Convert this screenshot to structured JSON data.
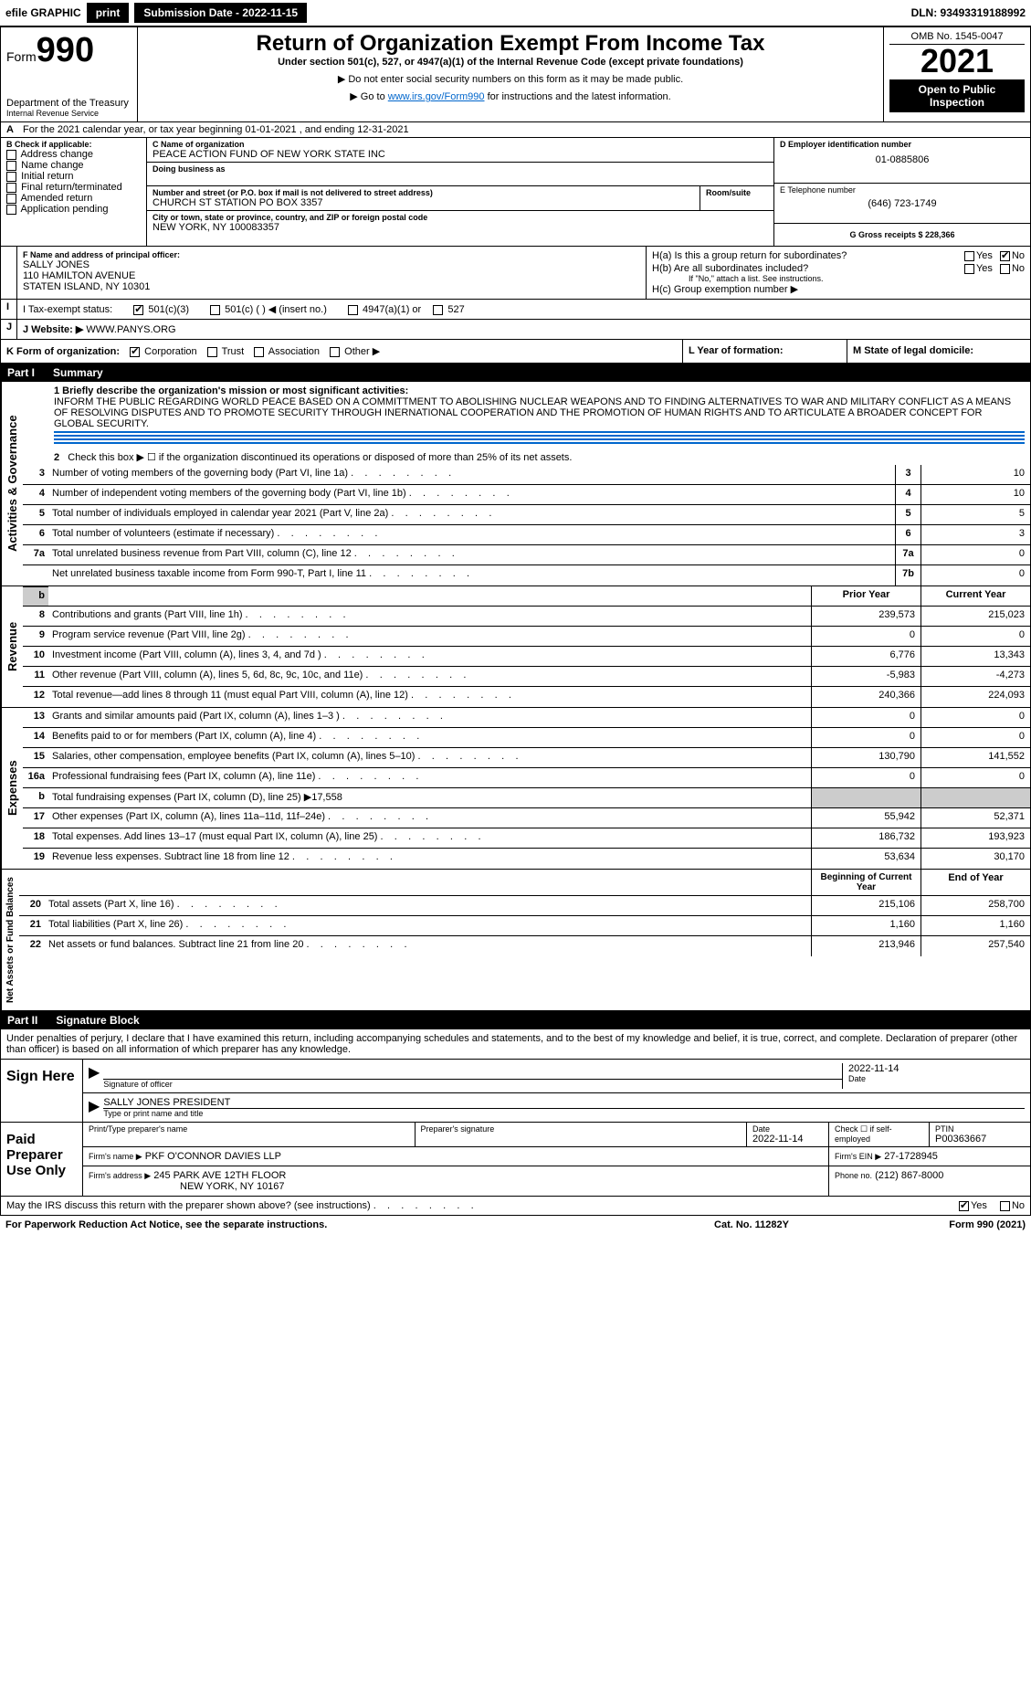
{
  "topbar": {
    "efile": "efile GRAPHIC",
    "print": "print",
    "submission_label": "Submission Date - 2022-11-15",
    "dln": "DLN: 93493319188992"
  },
  "header": {
    "form_prefix": "Form",
    "form_number": "990",
    "dept": "Department of the Treasury",
    "irs": "Internal Revenue Service",
    "title": "Return of Organization Exempt From Income Tax",
    "subtitle": "Under section 501(c), 527, or 4947(a)(1) of the Internal Revenue Code (except private foundations)",
    "note1": "▶ Do not enter social security numbers on this form as it may be made public.",
    "note2_pre": "▶ Go to ",
    "note2_link": "www.irs.gov/Form990",
    "note2_post": " for instructions and the latest information.",
    "omb": "OMB No. 1545-0047",
    "year": "2021",
    "open": "Open to Public Inspection"
  },
  "period": {
    "text_a": "For the 2021 calendar year, or tax year beginning 01-01-2021    , and ending 12-31-2021",
    "label_a": "A"
  },
  "section_b": {
    "label": "B Check if applicable:",
    "options": [
      "Address change",
      "Name change",
      "Initial return",
      "Final return/terminated",
      "Amended return",
      "Application pending"
    ]
  },
  "section_c": {
    "name_label": "C Name of organization",
    "name": "PEACE ACTION FUND OF NEW YORK STATE INC",
    "dba_label": "Doing business as",
    "dba": "",
    "addr_label": "Number and street (or P.O. box if mail is not delivered to street address)",
    "room_label": "Room/suite",
    "addr": "CHURCH ST STATION PO BOX 3357",
    "city_label": "City or town, state or province, country, and ZIP or foreign postal code",
    "city": "NEW YORK, NY  100083357"
  },
  "section_d": {
    "label": "D Employer identification number",
    "ein": "01-0885806"
  },
  "section_e": {
    "label": "E Telephone number",
    "phone": "(646) 723-1749"
  },
  "section_g": {
    "label": "G Gross receipts $ 228,366"
  },
  "section_f": {
    "label": "F  Name and address of principal officer:",
    "name": "SALLY JONES",
    "addr1": "110 HAMILTON AVENUE",
    "addr2": "STATEN ISLAND, NY  10301"
  },
  "section_h": {
    "ha": "H(a)  Is this a group return for subordinates?",
    "hb": "H(b)  Are all subordinates included?",
    "hb_note": "If \"No,\" attach a list. See instructions.",
    "hc": "H(c)  Group exemption number ▶",
    "yes": "Yes",
    "no": "No"
  },
  "section_i": {
    "label": "I  Tax-exempt status:",
    "opts": [
      "501(c)(3)",
      "501(c) (  ) ◀ (insert no.)",
      "4947(a)(1) or",
      "527"
    ]
  },
  "section_j": {
    "label": "J  Website: ▶",
    "value": " WWW.PANYS.ORG"
  },
  "section_k": {
    "label": "K Form of organization:",
    "opts": [
      "Corporation",
      "Trust",
      "Association",
      "Other ▶"
    ]
  },
  "section_l": {
    "label": "L Year of formation:",
    "value": ""
  },
  "section_m": {
    "label": "M State of legal domicile:",
    "value": ""
  },
  "part1": {
    "title": "Part I",
    "name": "Summary",
    "vlabels": {
      "gov": "Activities & Governance",
      "rev": "Revenue",
      "exp": "Expenses",
      "net": "Net Assets or Fund Balances"
    },
    "l1_label": "1  Briefly describe the organization's mission or most significant activities:",
    "l1_text": "INFORM THE PUBLIC REGARDING WORLD PEACE BASED ON A COMMITTMENT TO ABOLISHING NUCLEAR WEAPONS AND TO FINDING ALTERNATIVES TO WAR AND MILITARY CONFLICT AS A MEANS OF RESOLVING DISPUTES AND TO PROMOTE SECURITY THROUGH INERNATIONAL COOPERATION AND THE PROMOTION OF HUMAN RIGHTS AND TO ARTICULATE A BROADER CONCEPT FOR GLOBAL SECURITY.",
    "l2": "Check this box ▶ ☐ if the organization discontinued its operations or disposed of more than 25% of its net assets.",
    "lines_gov": [
      {
        "n": "3",
        "t": "Number of voting members of the governing body (Part VI, line 1a)",
        "box": "3",
        "v": "10"
      },
      {
        "n": "4",
        "t": "Number of independent voting members of the governing body (Part VI, line 1b)",
        "box": "4",
        "v": "10"
      },
      {
        "n": "5",
        "t": "Total number of individuals employed in calendar year 2021 (Part V, line 2a)",
        "box": "5",
        "v": "5"
      },
      {
        "n": "6",
        "t": "Total number of volunteers (estimate if necessary)",
        "box": "6",
        "v": "3"
      },
      {
        "n": "7a",
        "t": "Total unrelated business revenue from Part VIII, column (C), line 12",
        "box": "7a",
        "v": "0"
      },
      {
        "n": "",
        "t": "Net unrelated business taxable income from Form 990-T, Part I, line 11",
        "box": "7b",
        "v": "0"
      }
    ],
    "col_prior": "Prior Year",
    "col_current": "Current Year",
    "lines_rev": [
      {
        "n": "8",
        "t": "Contributions and grants (Part VIII, line 1h)",
        "p": "239,573",
        "c": "215,023"
      },
      {
        "n": "9",
        "t": "Program service revenue (Part VIII, line 2g)",
        "p": "0",
        "c": "0"
      },
      {
        "n": "10",
        "t": "Investment income (Part VIII, column (A), lines 3, 4, and 7d )",
        "p": "6,776",
        "c": "13,343"
      },
      {
        "n": "11",
        "t": "Other revenue (Part VIII, column (A), lines 5, 6d, 8c, 9c, 10c, and 11e)",
        "p": "-5,983",
        "c": "-4,273"
      },
      {
        "n": "12",
        "t": "Total revenue—add lines 8 through 11 (must equal Part VIII, column (A), line 12)",
        "p": "240,366",
        "c": "224,093"
      }
    ],
    "lines_exp": [
      {
        "n": "13",
        "t": "Grants and similar amounts paid (Part IX, column (A), lines 1–3 )",
        "p": "0",
        "c": "0"
      },
      {
        "n": "14",
        "t": "Benefits paid to or for members (Part IX, column (A), line 4)",
        "p": "0",
        "c": "0"
      },
      {
        "n": "15",
        "t": "Salaries, other compensation, employee benefits (Part IX, column (A), lines 5–10)",
        "p": "130,790",
        "c": "141,552"
      },
      {
        "n": "16a",
        "t": "Professional fundraising fees (Part IX, column (A), line 11e)",
        "p": "0",
        "c": "0"
      },
      {
        "n": "b",
        "t": "Total fundraising expenses (Part IX, column (D), line 25) ▶17,558",
        "p": "",
        "c": "",
        "grey": true
      },
      {
        "n": "17",
        "t": "Other expenses (Part IX, column (A), lines 11a–11d, 11f–24e)",
        "p": "55,942",
        "c": "52,371"
      },
      {
        "n": "18",
        "t": "Total expenses. Add lines 13–17 (must equal Part IX, column (A), line 25)",
        "p": "186,732",
        "c": "193,923"
      },
      {
        "n": "19",
        "t": "Revenue less expenses. Subtract line 18 from line 12",
        "p": "53,634",
        "c": "30,170"
      }
    ],
    "col_begin": "Beginning of Current Year",
    "col_end": "End of Year",
    "lines_net": [
      {
        "n": "20",
        "t": "Total assets (Part X, line 16)",
        "p": "215,106",
        "c": "258,700"
      },
      {
        "n": "21",
        "t": "Total liabilities (Part X, line 26)",
        "p": "1,160",
        "c": "1,160"
      },
      {
        "n": "22",
        "t": "Net assets or fund balances. Subtract line 21 from line 20",
        "p": "213,946",
        "c": "257,540"
      }
    ]
  },
  "part2": {
    "title": "Part II",
    "name": "Signature Block",
    "penalty": "Under penalties of perjury, I declare that I have examined this return, including accompanying schedules and statements, and to the best of my knowledge and belief, it is true, correct, and complete. Declaration of preparer (other than officer) is based on all information of which preparer has any knowledge.",
    "sign_here": "Sign Here",
    "sig_officer": "Signature of officer",
    "date": "Date",
    "sig_date": "2022-11-14",
    "officer_name": "SALLY JONES PRESIDENT",
    "officer_label": "Type or print name and title",
    "paid": "Paid Preparer Use Only",
    "prep_name_label": "Print/Type preparer's name",
    "prep_sig_label": "Preparer's signature",
    "prep_date_label": "Date",
    "prep_date": "2022-11-14",
    "check_label": "Check ☐ if self-employed",
    "ptin_label": "PTIN",
    "ptin": "P00363667",
    "firm_name_label": "Firm's name    ▶",
    "firm_name": "PKF O'CONNOR DAVIES LLP",
    "firm_ein_label": "Firm's EIN ▶",
    "firm_ein": "27-1728945",
    "firm_addr_label": "Firm's address ▶",
    "firm_addr1": "245 PARK AVE 12TH FLOOR",
    "firm_addr2": "NEW YORK, NY  10167",
    "phone_label": "Phone no.",
    "phone": "(212) 867-8000",
    "discuss": "May the IRS discuss this return with the preparer shown above? (see instructions)",
    "yes": "Yes",
    "no": "No"
  },
  "footer": {
    "left": "For Paperwork Reduction Act Notice, see the separate instructions.",
    "mid": "Cat. No. 11282Y",
    "right": "Form 990 (2021)"
  }
}
